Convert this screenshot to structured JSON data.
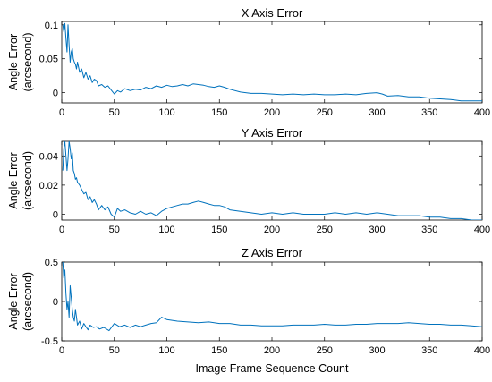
{
  "chart_data": [
    {
      "type": "line",
      "title": "X Axis Error",
      "ylabel": [
        "Angle Error",
        "(arcsecond)"
      ],
      "xlabel": "",
      "xlim": [
        0,
        400
      ],
      "ylim": [
        -0.015,
        0.105
      ],
      "xticks": [
        0,
        50,
        100,
        150,
        200,
        250,
        300,
        350,
        400
      ],
      "yticks": [
        {
          "value": 0,
          "label": "0"
        },
        {
          "value": 0.05,
          "label": "0.05"
        },
        {
          "value": 0.1,
          "label": "0.1"
        }
      ],
      "grid": false,
      "color": "#0072bd",
      "series": [
        {
          "x": [
            1,
            2,
            3,
            4,
            5,
            6,
            7,
            8,
            9,
            10,
            11,
            12,
            13,
            14,
            15,
            17,
            19,
            21,
            23,
            25,
            27,
            29,
            31,
            33,
            35,
            38,
            41,
            44,
            47,
            50,
            53,
            56,
            60,
            65,
            70,
            75,
            80,
            85,
            90,
            95,
            100,
            105,
            110,
            115,
            120,
            125,
            130,
            135,
            140,
            145,
            150,
            155,
            160,
            170,
            180,
            190,
            200,
            210,
            220,
            230,
            240,
            250,
            260,
            270,
            280,
            290,
            300,
            305,
            310,
            320,
            330,
            340,
            350,
            360,
            370,
            380,
            390,
            400
          ],
          "y": [
            0.1,
            0.09,
            0.102,
            0.08,
            0.06,
            0.1,
            0.07,
            0.045,
            0.06,
            0.065,
            0.05,
            0.045,
            0.042,
            0.035,
            0.045,
            0.03,
            0.035,
            0.022,
            0.03,
            0.02,
            0.025,
            0.015,
            0.02,
            0.018,
            0.01,
            0.012,
            0.008,
            0.01,
            0.004,
            -0.002,
            0.003,
            0.001,
            0.006,
            0.003,
            0.005,
            0.004,
            0.008,
            0.006,
            0.01,
            0.008,
            0.011,
            0.009,
            0.01,
            0.012,
            0.01,
            0.013,
            0.012,
            0.011,
            0.009,
            0.008,
            0.01,
            0.008,
            0.005,
            0.001,
            -0.001,
            -0.001,
            -0.002,
            -0.003,
            -0.002,
            -0.003,
            -0.002,
            -0.003,
            -0.003,
            -0.002,
            -0.003,
            -0.001,
            0.0,
            -0.002,
            -0.005,
            -0.004,
            -0.006,
            -0.006,
            -0.008,
            -0.009,
            -0.01,
            -0.012,
            -0.012,
            -0.012
          ]
        }
      ]
    },
    {
      "type": "line",
      "title": "Y Axis Error",
      "ylabel": [
        "Angle Error",
        "(arcsecond)"
      ],
      "xlabel": "",
      "xlim": [
        0,
        400
      ],
      "ylim": [
        -0.004,
        0.05
      ],
      "xticks": [
        0,
        50,
        100,
        150,
        200,
        250,
        300,
        350,
        400
      ],
      "yticks": [
        {
          "value": 0,
          "label": "0"
        },
        {
          "value": 0.02,
          "label": "0.02"
        },
        {
          "value": 0.04,
          "label": "0.04"
        }
      ],
      "grid": false,
      "color": "#0072bd",
      "series": [
        {
          "x": [
            1,
            2,
            3,
            4,
            5,
            6,
            7,
            8,
            9,
            10,
            11,
            12,
            13,
            14,
            15,
            17,
            19,
            21,
            23,
            25,
            27,
            29,
            31,
            33,
            35,
            38,
            41,
            44,
            47,
            50,
            53,
            56,
            60,
            65,
            70,
            75,
            80,
            85,
            90,
            95,
            100,
            105,
            110,
            115,
            120,
            125,
            130,
            135,
            140,
            145,
            150,
            155,
            160,
            170,
            180,
            190,
            200,
            210,
            220,
            230,
            240,
            250,
            260,
            270,
            280,
            290,
            300,
            310,
            320,
            330,
            340,
            350,
            360,
            370,
            380,
            390,
            400
          ],
          "y": [
            0.03,
            0.045,
            0.05,
            0.04,
            0.03,
            0.038,
            0.05,
            0.045,
            0.038,
            0.042,
            0.03,
            0.028,
            0.024,
            0.025,
            0.022,
            0.02,
            0.017,
            0.014,
            0.015,
            0.01,
            0.012,
            0.008,
            0.01,
            0.007,
            0.003,
            0.006,
            0.003,
            0.005,
            0.0,
            -0.002,
            0.004,
            0.002,
            0.003,
            0.001,
            0.0,
            0.002,
            0.0,
            0.001,
            -0.001,
            0.002,
            0.004,
            0.005,
            0.006,
            0.007,
            0.007,
            0.008,
            0.009,
            0.008,
            0.007,
            0.006,
            0.006,
            0.005,
            0.003,
            0.002,
            0.001,
            0.0,
            0.001,
            0.0,
            0.001,
            0.0,
            0.0,
            0.0,
            0.001,
            0.0,
            0.001,
            0.0,
            0.001,
            0.0,
            -0.001,
            -0.001,
            -0.001,
            -0.002,
            -0.002,
            -0.003,
            -0.003,
            -0.004,
            -0.004
          ]
        }
      ]
    },
    {
      "type": "line",
      "title": "Z Axis Error",
      "ylabel": [
        "Angle Error",
        "(arcsecond)"
      ],
      "xlabel": "Image Frame Sequence Count",
      "xlim": [
        0,
        400
      ],
      "ylim": [
        -0.5,
        0.5
      ],
      "xticks": [
        0,
        50,
        100,
        150,
        200,
        250,
        300,
        350,
        400
      ],
      "yticks": [
        {
          "value": -0.5,
          "label": "-0.5"
        },
        {
          "value": 0,
          "label": "0"
        },
        {
          "value": 0.5,
          "label": "0.5"
        }
      ],
      "grid": false,
      "color": "#0072bd",
      "series": [
        {
          "x": [
            1,
            2,
            3,
            4,
            5,
            6,
            7,
            8,
            9,
            10,
            11,
            12,
            13,
            14,
            15,
            17,
            19,
            21,
            23,
            25,
            27,
            30,
            33,
            36,
            40,
            45,
            50,
            55,
            60,
            65,
            70,
            75,
            80,
            85,
            90,
            95,
            100,
            110,
            120,
            130,
            140,
            150,
            160,
            170,
            180,
            190,
            200,
            210,
            220,
            230,
            240,
            250,
            260,
            270,
            280,
            290,
            300,
            310,
            320,
            330,
            340,
            350,
            360,
            370,
            380,
            390,
            400
          ],
          "y": [
            0.5,
            0.3,
            0.4,
            0.1,
            -0.1,
            0.0,
            -0.2,
            0.2,
            0.05,
            -0.1,
            -0.2,
            -0.25,
            -0.1,
            -0.2,
            -0.3,
            -0.25,
            -0.35,
            -0.28,
            -0.32,
            -0.36,
            -0.3,
            -0.33,
            -0.32,
            -0.35,
            -0.33,
            -0.37,
            -0.28,
            -0.32,
            -0.3,
            -0.33,
            -0.3,
            -0.32,
            -0.3,
            -0.28,
            -0.27,
            -0.2,
            -0.23,
            -0.25,
            -0.26,
            -0.27,
            -0.26,
            -0.28,
            -0.28,
            -0.3,
            -0.3,
            -0.31,
            -0.31,
            -0.31,
            -0.3,
            -0.3,
            -0.3,
            -0.29,
            -0.3,
            -0.3,
            -0.29,
            -0.29,
            -0.28,
            -0.28,
            -0.28,
            -0.27,
            -0.28,
            -0.29,
            -0.29,
            -0.3,
            -0.3,
            -0.31,
            -0.32
          ]
        }
      ]
    }
  ]
}
